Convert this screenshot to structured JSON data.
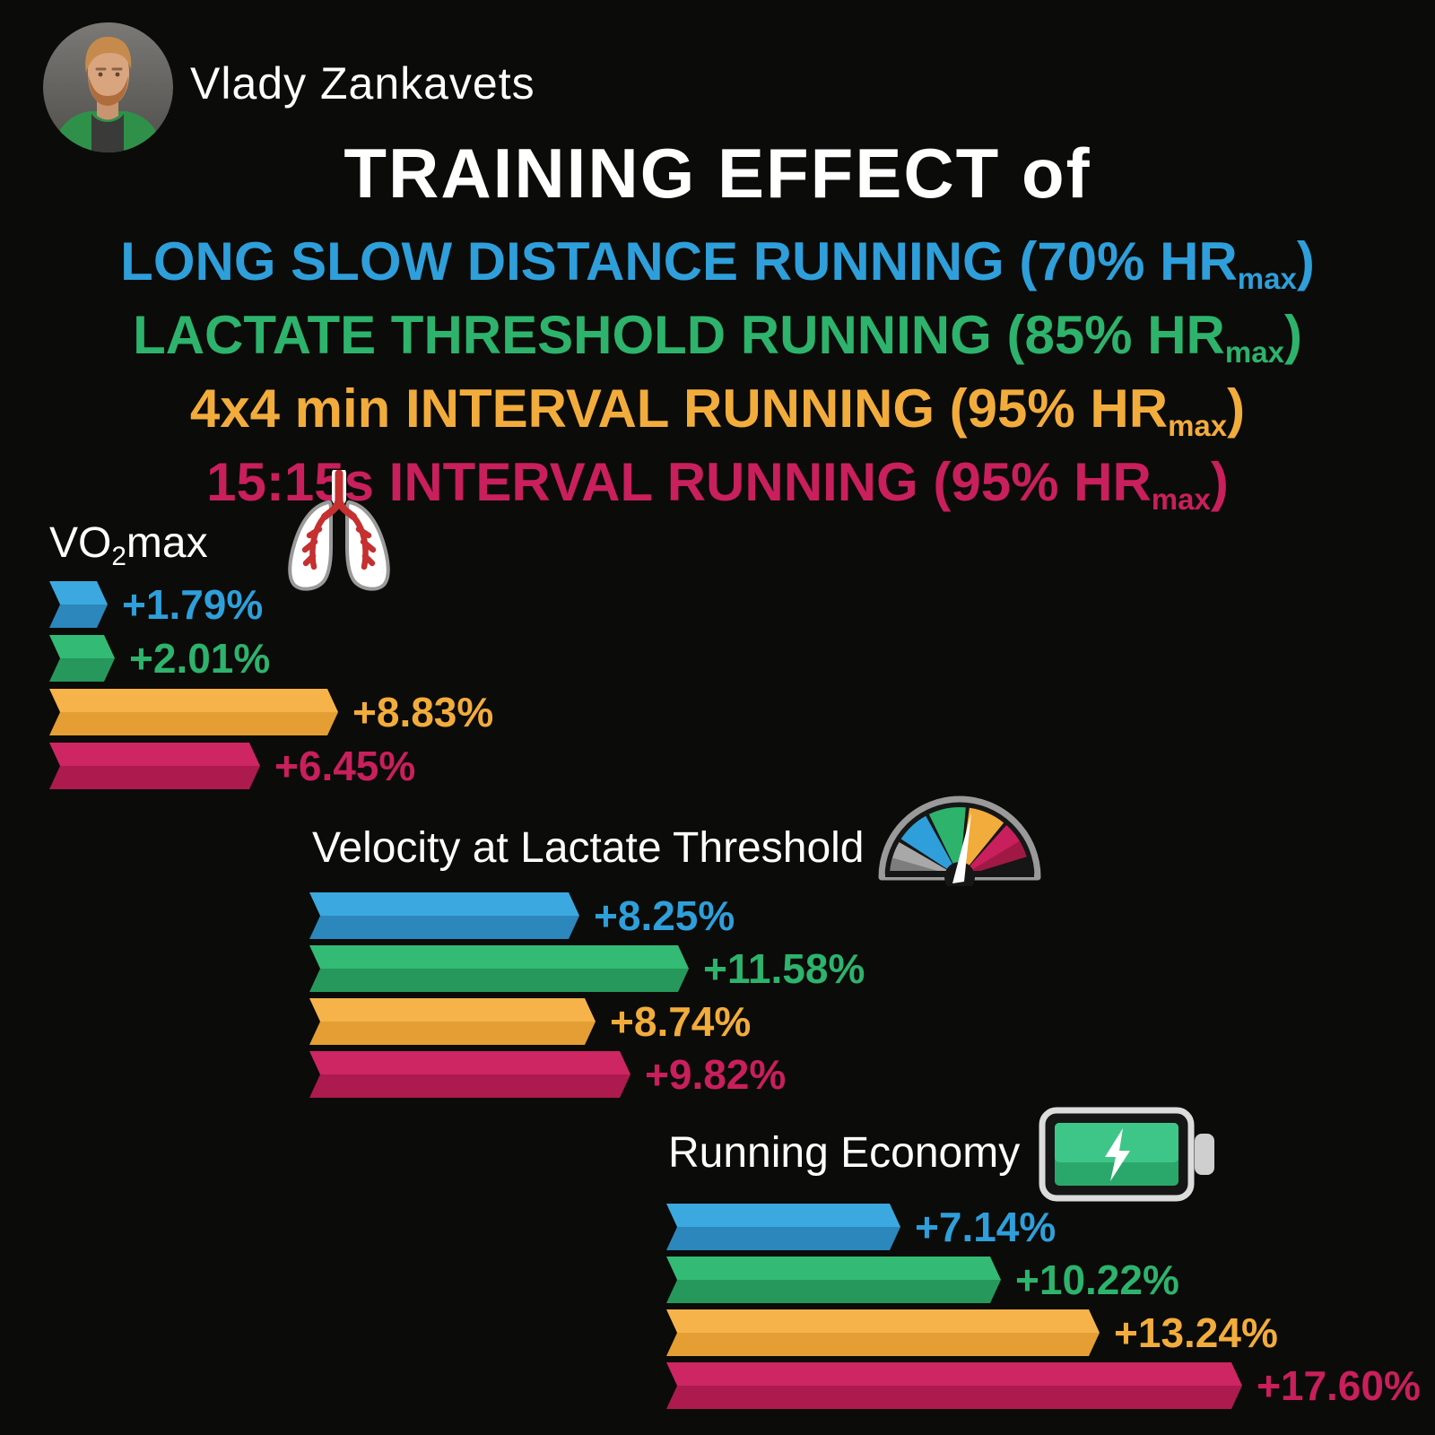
{
  "profile": {
    "name": "Vlady Zankavets"
  },
  "title": "TRAINING EFFECT of",
  "colors": {
    "background": "#0B0B09",
    "text": "#FFFFFF",
    "series": [
      {
        "name": "Long Slow Distance Running",
        "main": "#2E9FDA",
        "light": "#3CA8E0",
        "dark": "#2B87BC"
      },
      {
        "name": "Lactate Threshold Running",
        "main": "#2DB36C",
        "light": "#33BA74",
        "dark": "#26985B"
      },
      {
        "name": "4x4 min Interval Running",
        "main": "#F2AC3C",
        "light": "#F5B349",
        "dark": "#E49E33"
      },
      {
        "name": "15:15s Interval Running",
        "main": "#C91F5C",
        "light": "#CE2563",
        "dark": "#AC1A4E"
      }
    ]
  },
  "legend": [
    {
      "text": "LONG SLOW DISTANCE RUNNING (70% HR",
      "sub": "max",
      "suffix": ")"
    },
    {
      "text": "LACTATE THRESHOLD RUNNING (85% HR",
      "sub": "max",
      "suffix": ")"
    },
    {
      "text": "4x4 min INTERVAL RUNNING (95% HR",
      "sub": "max",
      "suffix": ")"
    },
    {
      "text": "15:15s INTERVAL RUNNING (95% HR",
      "sub": "max",
      "suffix": ")"
    }
  ],
  "chart_data": {
    "type": "bar",
    "orientation": "horizontal",
    "unit": "percent change",
    "series": [
      "LONG SLOW DISTANCE RUNNING (70% HRmax)",
      "LACTATE THRESHOLD RUNNING (85% HRmax)",
      "4x4 min INTERVAL RUNNING (95% HRmax)",
      "15:15s INTERVAL RUNNING (95% HRmax)"
    ],
    "groups": [
      {
        "title": "VO2max",
        "title_parts": {
          "pre": "VO",
          "sub": "2",
          "post": "max"
        },
        "icon": "lungs-icon",
        "values": [
          1.79,
          2.01,
          8.83,
          6.45
        ],
        "labels": [
          "+1.79%",
          "+2.01%",
          "+8.83%",
          "+6.45%"
        ]
      },
      {
        "title": "Velocity at Lactate Threshold",
        "title_parts": {
          "pre": "Velocity at Lactate Threshold",
          "sub": "",
          "post": ""
        },
        "icon": "speedometer-icon",
        "values": [
          8.25,
          11.58,
          8.74,
          9.82
        ],
        "labels": [
          "+8.25%",
          "+11.58%",
          "+8.74%",
          "+9.82%"
        ]
      },
      {
        "title": "Running Economy",
        "title_parts": {
          "pre": "Running Economy",
          "sub": "",
          "post": ""
        },
        "icon": "battery-icon",
        "values": [
          7.14,
          10.22,
          13.24,
          17.6
        ],
        "labels": [
          "+7.14%",
          "+10.22%",
          "+13.24%",
          "+17.60%"
        ]
      }
    ]
  }
}
